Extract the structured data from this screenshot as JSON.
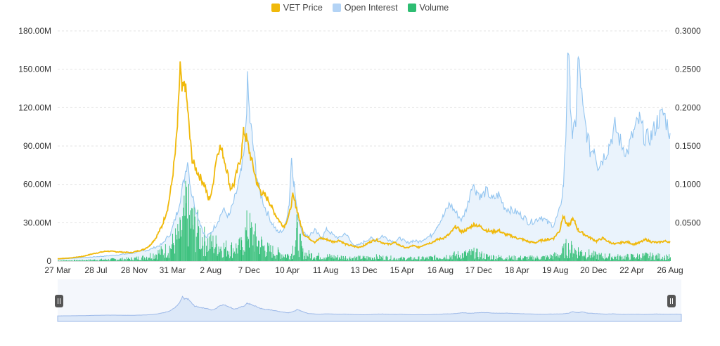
{
  "colors": {
    "price": "#F0B90B",
    "open_interest": "#93C5F0",
    "open_interest_fill": "#EAF3FC",
    "volume": "#2EBD72",
    "navigator_fill": "#DCE8F8",
    "navigator_line": "#9DB9E8",
    "grid": "#E3E3E3",
    "axis_text": "#333333",
    "handle": "#555555"
  },
  "legend": [
    {
      "key": "price",
      "label": "VET Price",
      "color": "#F0B90B"
    },
    {
      "key": "open_interest",
      "label": "Open Interest",
      "color": "#B3D3F5"
    },
    {
      "key": "volume",
      "label": "Volume",
      "color": "#2EBD72"
    }
  ],
  "chart_data": {
    "type": "line",
    "title": "",
    "xlabel": "",
    "ylabel_left": "",
    "ylabel_right": "",
    "left_axis": {
      "min": 0,
      "max": 180000000,
      "ticks": [
        "0",
        "30.00M",
        "60.00M",
        "90.00M",
        "120.00M",
        "150.00M",
        "180.00M"
      ]
    },
    "right_axis": {
      "min": 0,
      "max": 0.3,
      "ticks": [
        "",
        "0.0500",
        "0.1000",
        "0.1500",
        "0.2000",
        "0.2500",
        "0.3000"
      ]
    },
    "x_ticks": [
      "27 Mar",
      "28 Jul",
      "28 Nov",
      "31 Mar",
      "2 Aug",
      "7 Dec",
      "10 Apr",
      "11 Aug",
      "13 Dec",
      "15 Apr",
      "16 Aug",
      "17 Dec",
      "18 Apr",
      "19 Aug",
      "20 Dec",
      "22 Apr",
      "26 Aug"
    ],
    "x_range": [
      0,
      100
    ],
    "legend_position": "top-center",
    "grid": true,
    "series": [
      {
        "name": "VET Price",
        "axis": "right",
        "points": [
          [
            0,
            0.003
          ],
          [
            2,
            0.004
          ],
          [
            4,
            0.006
          ],
          [
            6,
            0.01
          ],
          [
            8,
            0.013
          ],
          [
            10,
            0.012
          ],
          [
            12,
            0.011
          ],
          [
            14,
            0.015
          ],
          [
            15,
            0.02
          ],
          [
            16,
            0.03
          ],
          [
            17,
            0.045
          ],
          [
            18,
            0.07
          ],
          [
            18.6,
            0.1
          ],
          [
            19.2,
            0.14
          ],
          [
            19.6,
            0.18
          ],
          [
            20,
            0.255
          ],
          [
            20.3,
            0.22
          ],
          [
            20.8,
            0.23
          ],
          [
            21.2,
            0.2
          ],
          [
            21.6,
            0.16
          ],
          [
            22,
            0.13
          ],
          [
            22.6,
            0.12
          ],
          [
            23.2,
            0.11
          ],
          [
            24,
            0.1
          ],
          [
            24.6,
            0.08
          ],
          [
            25.2,
            0.09
          ],
          [
            25.8,
            0.13
          ],
          [
            26.4,
            0.15
          ],
          [
            27,
            0.14
          ],
          [
            27.6,
            0.12
          ],
          [
            28.2,
            0.095
          ],
          [
            28.8,
            0.1
          ],
          [
            29.4,
            0.12
          ],
          [
            30,
            0.14
          ],
          [
            30.4,
            0.17
          ],
          [
            30.8,
            0.16
          ],
          [
            31.4,
            0.14
          ],
          [
            32,
            0.12
          ],
          [
            32.6,
            0.1
          ],
          [
            33.2,
            0.09
          ],
          [
            33.8,
            0.085
          ],
          [
            34.4,
            0.08
          ],
          [
            35,
            0.07
          ],
          [
            35.6,
            0.06
          ],
          [
            36.4,
            0.05
          ],
          [
            37,
            0.045
          ],
          [
            37.8,
            0.06
          ],
          [
            38.4,
            0.085
          ],
          [
            39,
            0.07
          ],
          [
            39.6,
            0.05
          ],
          [
            40.2,
            0.035
          ],
          [
            41,
            0.03
          ],
          [
            42,
            0.025
          ],
          [
            43,
            0.03
          ],
          [
            44,
            0.028
          ],
          [
            45,
            0.025
          ],
          [
            46,
            0.027
          ],
          [
            47,
            0.022
          ],
          [
            48,
            0.02
          ],
          [
            49,
            0.018
          ],
          [
            50,
            0.02
          ],
          [
            51,
            0.025
          ],
          [
            52,
            0.028
          ],
          [
            53,
            0.024
          ],
          [
            54,
            0.022
          ],
          [
            55,
            0.024
          ],
          [
            56,
            0.02
          ],
          [
            57,
            0.017
          ],
          [
            58,
            0.02
          ],
          [
            59,
            0.018
          ],
          [
            60,
            0.022
          ],
          [
            61,
            0.024
          ],
          [
            62,
            0.028
          ],
          [
            63,
            0.03
          ],
          [
            64,
            0.035
          ],
          [
            65,
            0.045
          ],
          [
            66,
            0.038
          ],
          [
            67,
            0.042
          ],
          [
            68,
            0.048
          ],
          [
            69,
            0.045
          ],
          [
            70,
            0.04
          ],
          [
            71,
            0.038
          ],
          [
            72,
            0.04
          ],
          [
            73,
            0.035
          ],
          [
            74,
            0.033
          ],
          [
            75,
            0.03
          ],
          [
            76,
            0.028
          ],
          [
            77,
            0.025
          ],
          [
            78,
            0.024
          ],
          [
            79,
            0.027
          ],
          [
            80,
            0.028
          ],
          [
            81,
            0.03
          ],
          [
            82,
            0.04
          ],
          [
            82.5,
            0.06
          ],
          [
            83,
            0.05
          ],
          [
            83.5,
            0.045
          ],
          [
            84,
            0.055
          ],
          [
            84.5,
            0.05
          ],
          [
            85,
            0.04
          ],
          [
            86,
            0.035
          ],
          [
            87,
            0.03
          ],
          [
            88,
            0.026
          ],
          [
            89,
            0.03
          ],
          [
            90,
            0.025
          ],
          [
            91,
            0.022
          ],
          [
            92,
            0.024
          ],
          [
            93,
            0.025
          ],
          [
            94,
            0.022
          ],
          [
            95,
            0.024
          ],
          [
            96,
            0.028
          ],
          [
            97,
            0.025
          ],
          [
            98,
            0.024
          ],
          [
            99,
            0.026
          ],
          [
            100,
            0.025
          ]
        ]
      },
      {
        "name": "Open Interest",
        "axis": "left",
        "points": [
          [
            0,
            1500000
          ],
          [
            5,
            3000000
          ],
          [
            8,
            4000000
          ],
          [
            12,
            6000000
          ],
          [
            15,
            9000000
          ],
          [
            17,
            13000000
          ],
          [
            18.5,
            22000000
          ],
          [
            19.5,
            38000000
          ],
          [
            20.5,
            60000000
          ],
          [
            21.2,
            80000000
          ],
          [
            21.8,
            55000000
          ],
          [
            22.6,
            40000000
          ],
          [
            23.4,
            28000000
          ],
          [
            24.2,
            18000000
          ],
          [
            25,
            22000000
          ],
          [
            26,
            30000000
          ],
          [
            27,
            40000000
          ],
          [
            28,
            35000000
          ],
          [
            29,
            50000000
          ],
          [
            30,
            70000000
          ],
          [
            30.5,
            85000000
          ],
          [
            31,
            138000000
          ],
          [
            31.4,
            110000000
          ],
          [
            31.8,
            95000000
          ],
          [
            32.4,
            70000000
          ],
          [
            33,
            55000000
          ],
          [
            34,
            40000000
          ],
          [
            35,
            30000000
          ],
          [
            36,
            22000000
          ],
          [
            37,
            25000000
          ],
          [
            37.8,
            45000000
          ],
          [
            38.2,
            83000000
          ],
          [
            38.6,
            60000000
          ],
          [
            39.2,
            35000000
          ],
          [
            40,
            22000000
          ],
          [
            41,
            20000000
          ],
          [
            42,
            24000000
          ],
          [
            43,
            18000000
          ],
          [
            44,
            25000000
          ],
          [
            45,
            20000000
          ],
          [
            46,
            18000000
          ],
          [
            47,
            22000000
          ],
          [
            48,
            14000000
          ],
          [
            49,
            12000000
          ],
          [
            50,
            15000000
          ],
          [
            51,
            18000000
          ],
          [
            52,
            16000000
          ],
          [
            53,
            20000000
          ],
          [
            54,
            17000000
          ],
          [
            55,
            15000000
          ],
          [
            56,
            18000000
          ],
          [
            57,
            14000000
          ],
          [
            58,
            16000000
          ],
          [
            59,
            15000000
          ],
          [
            60,
            18000000
          ],
          [
            61,
            20000000
          ],
          [
            62,
            28000000
          ],
          [
            63,
            35000000
          ],
          [
            64,
            45000000
          ],
          [
            65,
            38000000
          ],
          [
            66,
            32000000
          ],
          [
            67,
            45000000
          ],
          [
            67.6,
            60000000
          ],
          [
            68.4,
            55000000
          ],
          [
            69.2,
            50000000
          ],
          [
            70,
            55000000
          ],
          [
            71,
            48000000
          ],
          [
            72,
            52000000
          ],
          [
            73,
            42000000
          ],
          [
            74,
            40000000
          ],
          [
            75,
            38000000
          ],
          [
            76,
            35000000
          ],
          [
            77,
            30000000
          ],
          [
            78,
            32000000
          ],
          [
            79,
            35000000
          ],
          [
            80,
            30000000
          ],
          [
            81,
            28000000
          ],
          [
            82,
            40000000
          ],
          [
            82.6,
            60000000
          ],
          [
            83,
            100000000
          ],
          [
            83.3,
            168000000
          ],
          [
            83.7,
            130000000
          ],
          [
            84.1,
            95000000
          ],
          [
            84.6,
            110000000
          ],
          [
            85,
            158000000
          ],
          [
            85.4,
            140000000
          ],
          [
            85.8,
            115000000
          ],
          [
            86.4,
            100000000
          ],
          [
            87,
            85000000
          ],
          [
            87.6,
            90000000
          ],
          [
            88.2,
            75000000
          ],
          [
            89,
            80000000
          ],
          [
            90,
            90000000
          ],
          [
            91,
            105000000
          ],
          [
            92,
            92000000
          ],
          [
            93,
            85000000
          ],
          [
            94,
            100000000
          ],
          [
            95,
            110000000
          ],
          [
            96,
            95000000
          ],
          [
            97,
            98000000
          ],
          [
            98,
            110000000
          ],
          [
            99,
            115000000
          ],
          [
            100,
            100000000
          ]
        ]
      },
      {
        "name": "Volume",
        "axis": "left",
        "type": "bar",
        "points": [
          [
            0,
            400000
          ],
          [
            4,
            700000
          ],
          [
            8,
            1200000
          ],
          [
            12,
            1800000
          ],
          [
            14,
            2800000
          ],
          [
            16,
            5500000
          ],
          [
            18,
            9000000
          ],
          [
            20,
            20000000
          ],
          [
            21,
            38000000
          ],
          [
            22,
            28000000
          ],
          [
            24,
            15000000
          ],
          [
            26,
            12000000
          ],
          [
            28,
            9000000
          ],
          [
            30,
            11000000
          ],
          [
            31,
            25000000
          ],
          [
            32,
            18000000
          ],
          [
            34,
            9000000
          ],
          [
            36,
            6000000
          ],
          [
            38,
            4000000
          ],
          [
            39,
            21000000
          ],
          [
            40,
            6000000
          ],
          [
            42,
            4000000
          ],
          [
            44,
            3500000
          ],
          [
            46,
            3000000
          ],
          [
            48,
            2500000
          ],
          [
            50,
            2500000
          ],
          [
            52,
            3000000
          ],
          [
            54,
            2500000
          ],
          [
            56,
            2000000
          ],
          [
            58,
            2000000
          ],
          [
            60,
            2200000
          ],
          [
            62,
            3000000
          ],
          [
            64,
            4000000
          ],
          [
            66,
            5000000
          ],
          [
            68,
            6000000
          ],
          [
            70,
            3500000
          ],
          [
            72,
            3000000
          ],
          [
            74,
            2500000
          ],
          [
            76,
            2500000
          ],
          [
            78,
            2500000
          ],
          [
            80,
            3000000
          ],
          [
            82,
            5000000
          ],
          [
            83,
            10000000
          ],
          [
            84,
            9000000
          ],
          [
            86,
            6000000
          ],
          [
            88,
            4000000
          ],
          [
            90,
            3500000
          ],
          [
            92,
            3000000
          ],
          [
            94,
            3500000
          ],
          [
            96,
            4000000
          ],
          [
            98,
            3500000
          ],
          [
            100,
            3000000
          ]
        ]
      }
    ]
  }
}
